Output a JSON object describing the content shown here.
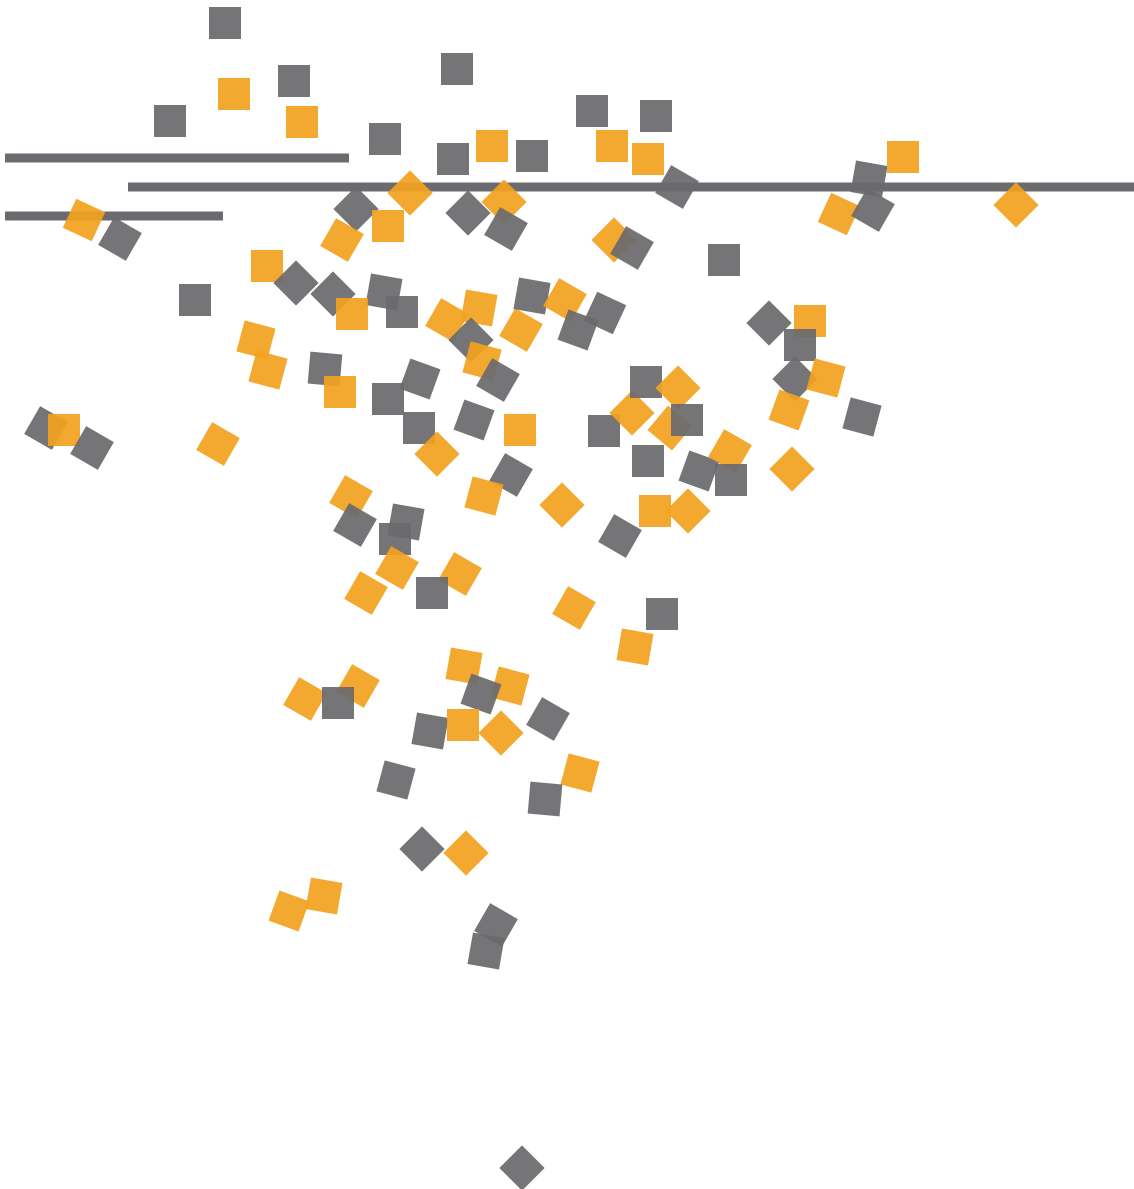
{
  "artwork": {
    "background_color": "#ffffff",
    "colors": {
      "gray": "#6b6a6e",
      "orange": "#f2a31f"
    },
    "square_opacity": 0.93,
    "notes": ""
  }
}
